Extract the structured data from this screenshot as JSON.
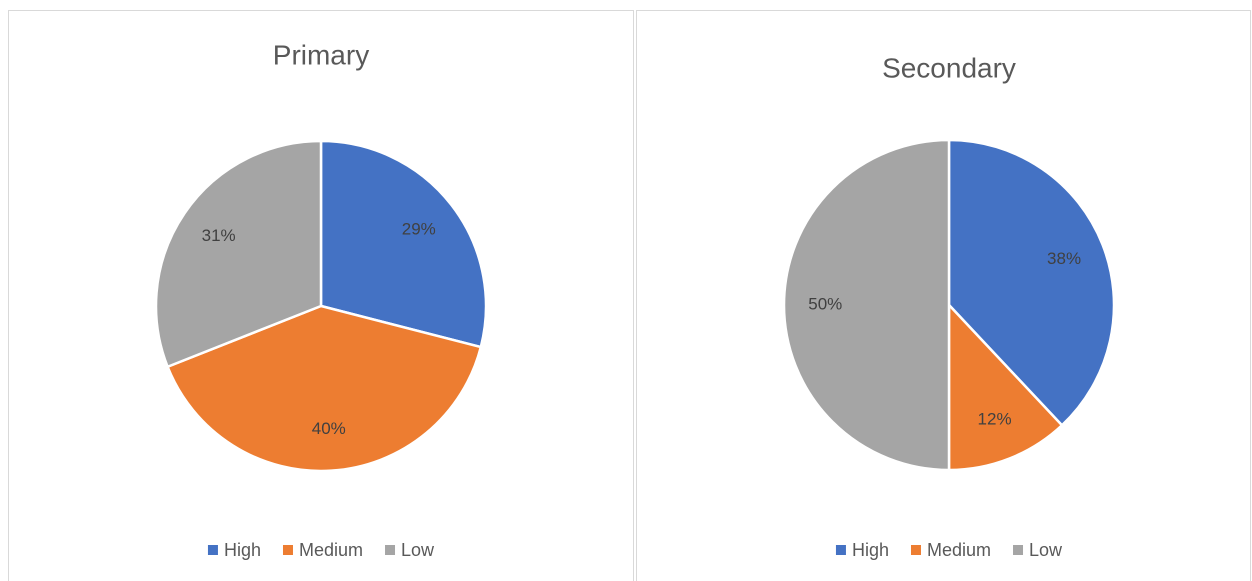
{
  "chart_data": [
    {
      "type": "pie",
      "title": "Primary",
      "categories": [
        "High",
        "Medium",
        "Low"
      ],
      "values": [
        29,
        40,
        31
      ],
      "value_labels": [
        "29%",
        "40%",
        "31%"
      ],
      "colors": [
        "#4472c4",
        "#ed7d31",
        "#a5a5a5"
      ]
    },
    {
      "type": "pie",
      "title": "Secondary",
      "categories": [
        "High",
        "Medium",
        "Low"
      ],
      "values": [
        38,
        12,
        50
      ],
      "value_labels": [
        "38%",
        "12%",
        "50%"
      ],
      "colors": [
        "#4472c4",
        "#ed7d31",
        "#a5a5a5"
      ]
    }
  ]
}
